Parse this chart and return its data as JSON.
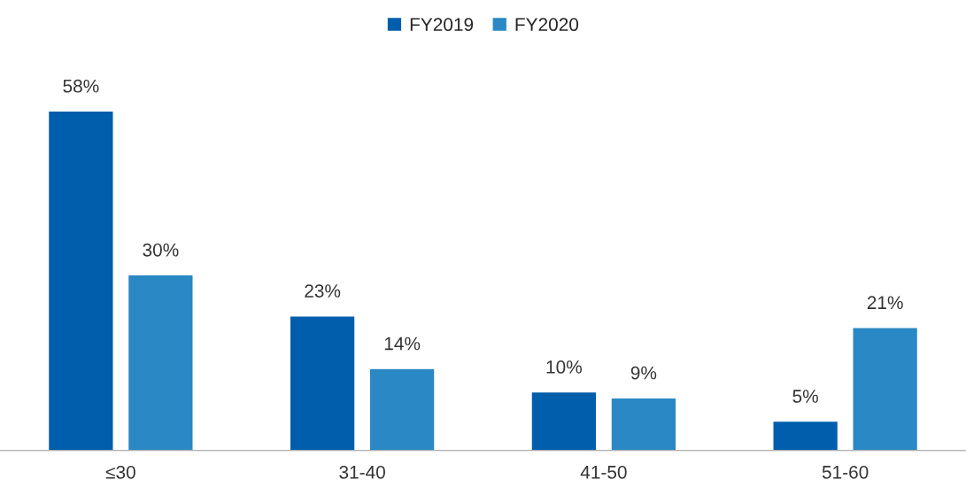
{
  "chart_data": {
    "type": "bar",
    "categories": [
      "≤30",
      "31-40",
      "41-50",
      "51-60"
    ],
    "series": [
      {
        "name": "FY2019",
        "color": "#005eac",
        "values": [
          58,
          23,
          10,
          5
        ],
        "value_labels": [
          "58%",
          "23%",
          "10%",
          "5%"
        ]
      },
      {
        "name": "FY2020",
        "color": "#2a88c4",
        "values": [
          30,
          14,
          9,
          21
        ],
        "value_labels": [
          "30%",
          "14%",
          "9%",
          "21%"
        ]
      }
    ],
    "legend": "top",
    "grid": false
  }
}
